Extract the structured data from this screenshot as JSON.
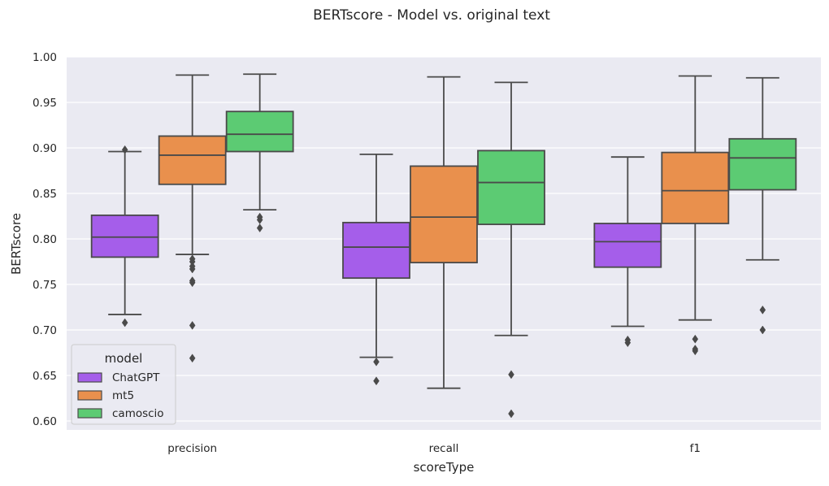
{
  "chart_data": {
    "type": "box",
    "title": "BERTscore - Model vs. original text",
    "xlabel": "scoreType",
    "ylabel": "BERTscore",
    "categories": [
      "precision",
      "recall",
      "f1"
    ],
    "ylim": [
      0.59,
      1.0
    ],
    "yticks": [
      "0.60",
      "0.65",
      "0.70",
      "0.75",
      "0.80",
      "0.85",
      "0.90",
      "0.95",
      "1.00"
    ],
    "grid": true,
    "legend": {
      "title": "model",
      "placement": "lower-left"
    },
    "series": [
      {
        "name": "ChatGPT",
        "color": "#A55EEA",
        "boxes": [
          {
            "whisker_low": 0.717,
            "q1": 0.78,
            "median": 0.802,
            "q3": 0.826,
            "whisker_high": 0.896,
            "outliers": [
              0.898,
              0.708
            ]
          },
          {
            "whisker_low": 0.67,
            "q1": 0.757,
            "median": 0.791,
            "q3": 0.818,
            "whisker_high": 0.893,
            "outliers": [
              0.665,
              0.644
            ]
          },
          {
            "whisker_low": 0.704,
            "q1": 0.769,
            "median": 0.797,
            "q3": 0.817,
            "whisker_high": 0.89,
            "outliers": [
              0.689,
              0.686
            ]
          }
        ]
      },
      {
        "name": "mt5",
        "color": "#E9904D",
        "boxes": [
          {
            "whisker_low": 0.783,
            "q1": 0.86,
            "median": 0.892,
            "q3": 0.913,
            "whisker_high": 0.98,
            "outliers": [
              0.778,
              0.775,
              0.77,
              0.767,
              0.754,
              0.752,
              0.705,
              0.669
            ]
          },
          {
            "whisker_low": 0.636,
            "q1": 0.774,
            "median": 0.824,
            "q3": 0.88,
            "whisker_high": 0.978,
            "outliers": []
          },
          {
            "whisker_low": 0.711,
            "q1": 0.817,
            "median": 0.853,
            "q3": 0.895,
            "whisker_high": 0.979,
            "outliers": [
              0.69,
              0.679,
              0.677
            ]
          }
        ]
      },
      {
        "name": "camoscio",
        "color": "#5CCB73",
        "boxes": [
          {
            "whisker_low": 0.832,
            "q1": 0.896,
            "median": 0.915,
            "q3": 0.94,
            "whisker_high": 0.981,
            "outliers": [
              0.824,
              0.821,
              0.812
            ]
          },
          {
            "whisker_low": 0.694,
            "q1": 0.816,
            "median": 0.862,
            "q3": 0.897,
            "whisker_high": 0.972,
            "outliers": [
              0.651,
              0.608
            ]
          },
          {
            "whisker_low": 0.777,
            "q1": 0.854,
            "median": 0.889,
            "q3": 0.91,
            "whisker_high": 0.977,
            "outliers": [
              0.722,
              0.7
            ]
          }
        ]
      }
    ]
  }
}
